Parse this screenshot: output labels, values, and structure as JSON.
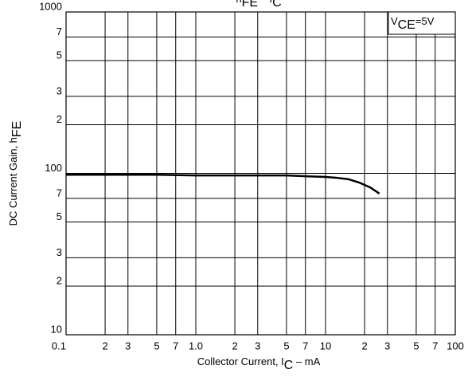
{
  "chart_data": {
    "type": "line",
    "title": [
      "h",
      "FE",
      " – I",
      "C"
    ],
    "xlabel": [
      "Collector Current, I",
      "C",
      "  –  mA"
    ],
    "ylabel": [
      "DC Current Gain, h",
      "FE"
    ],
    "annotation": [
      "V",
      "CE",
      "=5V"
    ],
    "xscale": "log",
    "yscale": "log",
    "grid": true,
    "xlim": [
      0.1,
      100
    ],
    "ylim": [
      10,
      1000
    ],
    "xticks": [
      0.1,
      {
        "value": 0.2,
        "label": "2"
      },
      {
        "value": 0.3,
        "label": "3"
      },
      {
        "value": 0.5,
        "label": "5"
      },
      {
        "value": 0.7,
        "label": "7"
      },
      {
        "value": 1,
        "label": "1.0"
      },
      {
        "value": 2,
        "label": "2"
      },
      {
        "value": 3,
        "label": "3"
      },
      {
        "value": 5,
        "label": "5"
      },
      {
        "value": 7,
        "label": "7"
      },
      10,
      {
        "value": 20,
        "label": "2"
      },
      {
        "value": 30,
        "label": "3"
      },
      {
        "value": 50,
        "label": "5"
      },
      {
        "value": 70,
        "label": "7"
      },
      100
    ],
    "yticks": [
      10,
      {
        "value": 20,
        "label": "2"
      },
      {
        "value": 30,
        "label": "3"
      },
      {
        "value": 50,
        "label": "5"
      },
      {
        "value": 70,
        "label": "7"
      },
      100,
      {
        "value": 200,
        "label": "2"
      },
      {
        "value": 300,
        "label": "3"
      },
      {
        "value": 500,
        "label": "5"
      },
      {
        "value": 700,
        "label": "7"
      },
      1000
    ],
    "x": [
      0.1,
      0.5,
      1,
      3,
      5,
      7,
      10,
      12,
      15,
      18,
      22,
      26
    ],
    "series": [
      {
        "color": "#000000",
        "values": [
          98,
          98,
          97,
          97,
          97,
          96,
          95,
          94,
          92,
          88,
          82,
          75
        ]
      }
    ]
  }
}
